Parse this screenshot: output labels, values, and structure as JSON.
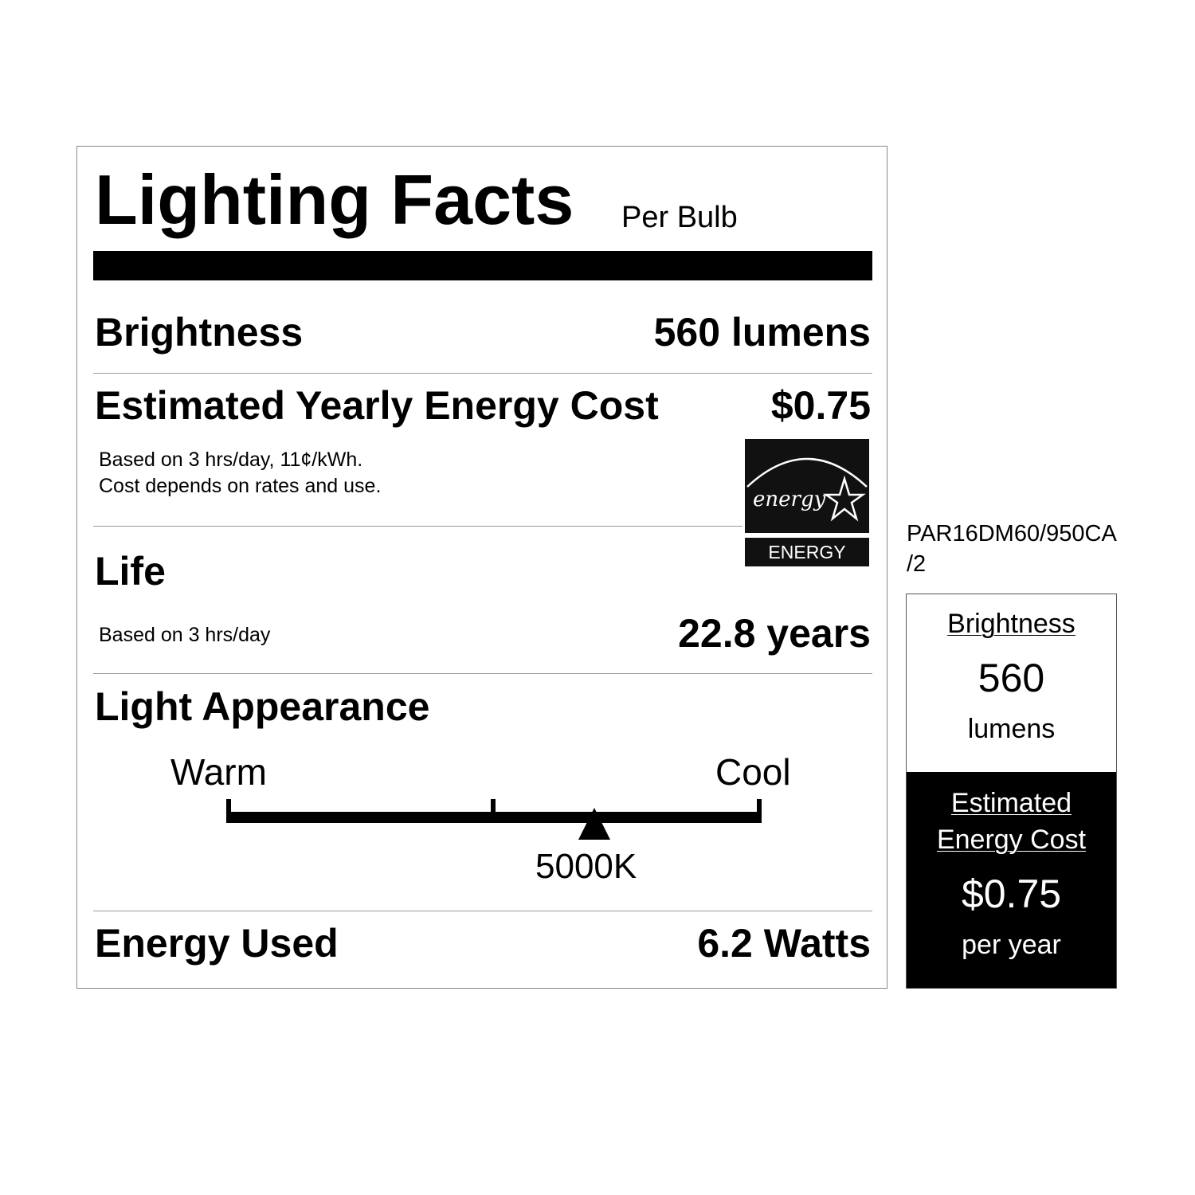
{
  "title": "Lighting Facts",
  "subtitle": "Per Bulb",
  "brightness": {
    "label": "Brightness",
    "value": "560 lumens"
  },
  "energy_cost": {
    "label": "Estimated Yearly Energy Cost",
    "value": "$0.75",
    "note_line1": "Based on 3 hrs/day, 11¢/kWh.",
    "note_line2": "Cost depends on rates and use."
  },
  "energy_star": {
    "script_text": "energy",
    "label": "ENERGY STAR"
  },
  "life": {
    "label": "Life",
    "note": "Based on 3 hrs/day",
    "value": "22.8 years"
  },
  "light_appearance": {
    "label": "Light Appearance",
    "warm": "Warm",
    "cool": "Cool",
    "value": "5000K",
    "scale_position": 0.69
  },
  "energy_used": {
    "label": "Energy Used",
    "value": "6.2 Watts"
  },
  "model": {
    "line1": "PAR16DM60/950CA",
    "line2": "/2"
  },
  "side_panel": {
    "brightness_label": "Brightness",
    "brightness_value": "560",
    "brightness_unit": "lumens",
    "cost_label_line1": "Estimated",
    "cost_label_line2": "Energy Cost",
    "cost_value": "$0.75",
    "cost_unit": "per year"
  }
}
